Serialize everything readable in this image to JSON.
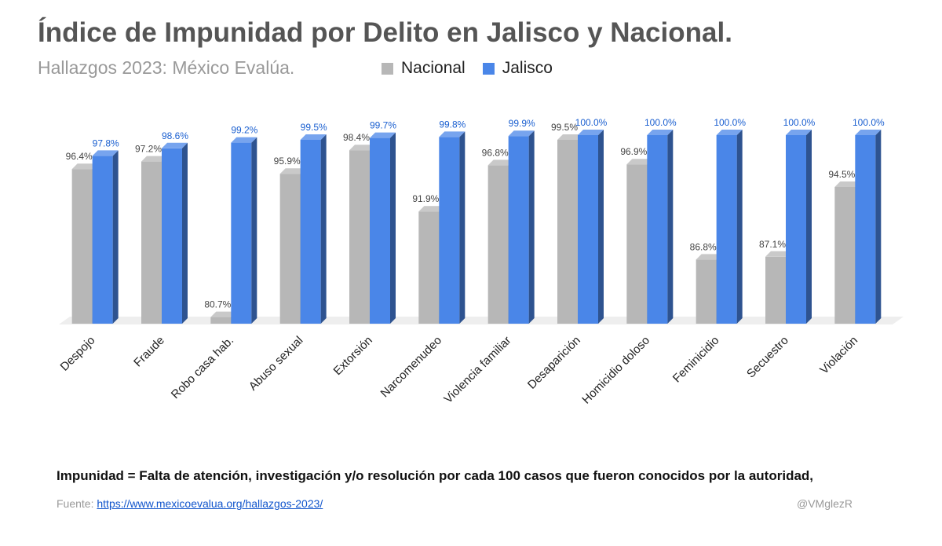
{
  "chart_data": {
    "type": "bar",
    "title": "Índice de Impunidad por Delito en Jalisco y Nacional.",
    "subtitle": "Hallazgos 2023: México Evalúa.",
    "categories": [
      "Despojo",
      "Fraude",
      "Robo casa hab.",
      "Abuso sexual",
      "Extorsión",
      "Narcomenudeo",
      "Violencia familiar",
      "Desaparición",
      "Homicidio doloso",
      "Feminicidio",
      "Secuestro",
      "Violación"
    ],
    "series": [
      {
        "name": "Nacional",
        "color": "#b7b7b7",
        "values": [
          96.4,
          97.2,
          80.7,
          95.9,
          98.4,
          91.9,
          96.8,
          99.5,
          96.9,
          86.8,
          87.1,
          94.5
        ],
        "labels": [
          "96.4%",
          "97.2%",
          "80.7%",
          "95.9%",
          "98.4%",
          "91.9%",
          "96.8%",
          "99.5%",
          "96.9%",
          "86.8%",
          "87.1%",
          "94.5%"
        ]
      },
      {
        "name": "Jalisco",
        "color": "#4a86e8",
        "values": [
          97.8,
          98.6,
          99.2,
          99.5,
          99.7,
          99.8,
          99.9,
          100.0,
          100.0,
          100.0,
          100.0,
          100.0
        ],
        "labels": [
          "97.8%",
          "98.6%",
          "99.2%",
          "99.5%",
          "99.7%",
          "99.8%",
          "99.9%",
          "100.0%",
          "100.0%",
          "100.0%",
          "100.0%",
          "100.0%"
        ]
      }
    ],
    "ylim": [
      80,
      100
    ],
    "grid": false,
    "legend_position": "top"
  },
  "note": "Impunidad = Falta de atención, investigación y/o resolución por cada 100 casos que fueron conocidos por la autoridad,",
  "source": {
    "label": "Fuente:",
    "url": "https://www.mexicoevalua.org/hallazgos-2023/"
  },
  "credit": "@VMglezR"
}
